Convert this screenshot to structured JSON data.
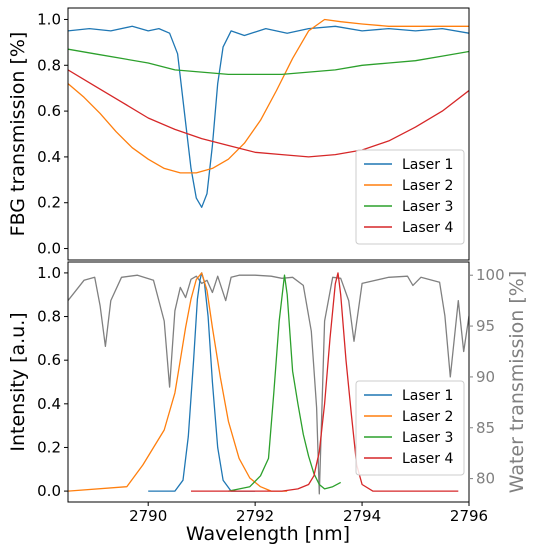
{
  "chart_data": [
    {
      "type": "line",
      "ylabel": "FBG transmission [%]",
      "xlim": [
        2788.5,
        2796
      ],
      "ylim": [
        -0.05,
        1.05
      ],
      "yticks": [
        "0.0",
        "0.2",
        "0.4",
        "0.6",
        "0.8",
        "1.0"
      ],
      "ytick_values": [
        0,
        0.2,
        0.4,
        0.6,
        0.8,
        1.0
      ],
      "legend_position": "lower-right",
      "series": [
        {
          "name": "Laser 1",
          "color": "#1f77b4",
          "x": [
            2788.5,
            2788.9,
            2789.3,
            2789.7,
            2790.0,
            2790.2,
            2790.4,
            2790.55,
            2790.7,
            2790.8,
            2790.9,
            2791.0,
            2791.1,
            2791.2,
            2791.3,
            2791.4,
            2791.55,
            2791.8,
            2792.2,
            2792.6,
            2793.0,
            2793.5,
            2794.0,
            2794.5,
            2795.0,
            2795.5,
            2796.0
          ],
          "y": [
            0.95,
            0.96,
            0.95,
            0.97,
            0.95,
            0.96,
            0.94,
            0.85,
            0.55,
            0.35,
            0.22,
            0.18,
            0.24,
            0.45,
            0.72,
            0.88,
            0.95,
            0.93,
            0.96,
            0.94,
            0.96,
            0.97,
            0.95,
            0.96,
            0.95,
            0.96,
            0.94
          ]
        },
        {
          "name": "Laser 2",
          "color": "#ff7f0e",
          "x": [
            2788.5,
            2788.8,
            2789.1,
            2789.4,
            2789.7,
            2790.0,
            2790.3,
            2790.6,
            2790.9,
            2791.2,
            2791.5,
            2791.8,
            2792.1,
            2792.4,
            2792.7,
            2793.0,
            2793.3,
            2793.6,
            2794.0,
            2794.5,
            2795.0,
            2795.5,
            2796.0
          ],
          "y": [
            0.72,
            0.66,
            0.59,
            0.51,
            0.44,
            0.39,
            0.35,
            0.33,
            0.33,
            0.35,
            0.39,
            0.46,
            0.56,
            0.69,
            0.83,
            0.95,
            1.0,
            0.99,
            0.98,
            0.97,
            0.97,
            0.97,
            0.97
          ]
        },
        {
          "name": "Laser 3",
          "color": "#2ca02c",
          "x": [
            2788.5,
            2789.0,
            2789.5,
            2790.0,
            2790.5,
            2791.0,
            2791.5,
            2792.0,
            2792.5,
            2793.0,
            2793.5,
            2794.0,
            2794.5,
            2795.0,
            2795.5,
            2796.0
          ],
          "y": [
            0.87,
            0.85,
            0.83,
            0.81,
            0.78,
            0.77,
            0.76,
            0.76,
            0.76,
            0.77,
            0.78,
            0.8,
            0.81,
            0.82,
            0.84,
            0.86
          ]
        },
        {
          "name": "Laser 4",
          "color": "#d62728",
          "x": [
            2788.5,
            2789.0,
            2789.5,
            2790.0,
            2790.5,
            2791.0,
            2791.5,
            2792.0,
            2792.5,
            2793.0,
            2793.5,
            2794.0,
            2794.5,
            2795.0,
            2795.5,
            2796.0
          ],
          "y": [
            0.78,
            0.71,
            0.64,
            0.57,
            0.52,
            0.48,
            0.45,
            0.42,
            0.41,
            0.4,
            0.41,
            0.43,
            0.47,
            0.53,
            0.6,
            0.69
          ]
        }
      ]
    },
    {
      "type": "line",
      "xlabel": "Wavelength [nm]",
      "ylabel": "Intensity [a.u.]",
      "y2label": "Water transmission [%]",
      "xlim": [
        2788.5,
        2796
      ],
      "ylim": [
        -0.05,
        1.05
      ],
      "y2lim": [
        77.7,
        101.3
      ],
      "xticks": [
        "2790",
        "2792",
        "2794",
        "2796"
      ],
      "xtick_values": [
        2790,
        2792,
        2794,
        2796
      ],
      "yticks": [
        "0.0",
        "0.2",
        "0.4",
        "0.6",
        "0.8",
        "1.0"
      ],
      "ytick_values": [
        0,
        0.2,
        0.4,
        0.6,
        0.8,
        1.0
      ],
      "y2ticks": [
        "80",
        "85",
        "90",
        "95",
        "100"
      ],
      "y2tick_values": [
        80,
        85,
        90,
        95,
        100
      ],
      "legend_position": "lower-right",
      "series": [
        {
          "name": "Laser 1",
          "color": "#1f77b4",
          "x": [
            2790.0,
            2790.5,
            2790.65,
            2790.75,
            2790.85,
            2790.92,
            2790.97,
            2791.0,
            2791.05,
            2791.12,
            2791.2,
            2791.3,
            2791.4,
            2791.55,
            2792.0
          ],
          "y": [
            0.0,
            0.0,
            0.05,
            0.25,
            0.6,
            0.88,
            0.97,
            1.0,
            0.96,
            0.8,
            0.5,
            0.2,
            0.05,
            0.0,
            0.0
          ]
        },
        {
          "name": "Laser 2",
          "color": "#ff7f0e",
          "x": [
            2788.5,
            2789.6,
            2789.9,
            2790.1,
            2790.3,
            2790.5,
            2790.6,
            2790.7,
            2790.8,
            2790.9,
            2791.0,
            2791.1,
            2791.2,
            2791.35,
            2791.5,
            2791.7,
            2791.9,
            2792.1,
            2792.3,
            2792.6
          ],
          "y": [
            0.0,
            0.02,
            0.12,
            0.2,
            0.28,
            0.45,
            0.6,
            0.75,
            0.88,
            0.97,
            1.0,
            0.92,
            0.75,
            0.52,
            0.32,
            0.15,
            0.06,
            0.02,
            0.0,
            0.0
          ]
        },
        {
          "name": "Laser 3",
          "color": "#2ca02c",
          "x": [
            2791.5,
            2791.9,
            2792.1,
            2792.25,
            2792.35,
            2792.45,
            2792.55,
            2792.6,
            2792.7,
            2792.8,
            2792.9,
            2793.0,
            2793.1,
            2793.2,
            2793.3,
            2793.45,
            2793.6
          ],
          "y": [
            0.0,
            0.02,
            0.07,
            0.15,
            0.45,
            0.78,
            0.99,
            0.9,
            0.55,
            0.4,
            0.26,
            0.16,
            0.08,
            0.03,
            0.01,
            0.02,
            0.04
          ]
        },
        {
          "name": "Laser 4",
          "color": "#d62728",
          "x": [
            2790.8,
            2792.0,
            2792.5,
            2792.8,
            2793.0,
            2793.1,
            2793.2,
            2793.3,
            2793.4,
            2793.5,
            2793.55,
            2793.6,
            2793.7,
            2793.8,
            2793.9,
            2794.0,
            2794.2,
            2795.0,
            2795.8
          ],
          "y": [
            0.0,
            0.0,
            0.0,
            0.01,
            0.03,
            0.07,
            0.18,
            0.4,
            0.7,
            0.95,
            1.0,
            0.9,
            0.6,
            0.35,
            0.12,
            0.03,
            0.0,
            0.0,
            0.0
          ]
        },
        {
          "name": "Water transmission",
          "color": "#808080",
          "axis": "right",
          "x": [
            2788.5,
            2788.8,
            2789.0,
            2789.1,
            2789.2,
            2789.3,
            2789.5,
            2789.8,
            2790.1,
            2790.3,
            2790.4,
            2790.5,
            2790.6,
            2790.7,
            2790.8,
            2790.9,
            2791.0,
            2791.1,
            2791.2,
            2791.3,
            2791.45,
            2791.55,
            2791.7,
            2792.0,
            2792.3,
            2792.5,
            2792.7,
            2792.9,
            2793.05,
            2793.15,
            2793.2,
            2793.3,
            2793.45,
            2793.6,
            2793.75,
            2793.85,
            2794.0,
            2794.5,
            2794.85,
            2794.95,
            2795.1,
            2795.45,
            2795.55,
            2795.65,
            2795.8,
            2795.9,
            2796.0
          ],
          "y": [
            97.5,
            99.5,
            99.8,
            97.0,
            93.0,
            97.5,
            99.8,
            100.0,
            99.5,
            95.5,
            89.0,
            96.5,
            98.8,
            97.8,
            99.6,
            99.9,
            99.2,
            99.5,
            98.3,
            99.9,
            97.5,
            99.8,
            100.0,
            100.0,
            99.9,
            99.7,
            99.8,
            99.0,
            94.5,
            87.0,
            78.5,
            95.5,
            99.8,
            99.7,
            97.5,
            93.5,
            99.2,
            99.8,
            99.9,
            99.0,
            99.8,
            99.3,
            96.0,
            90.0,
            97.5,
            92.5,
            96.0
          ]
        }
      ]
    }
  ]
}
